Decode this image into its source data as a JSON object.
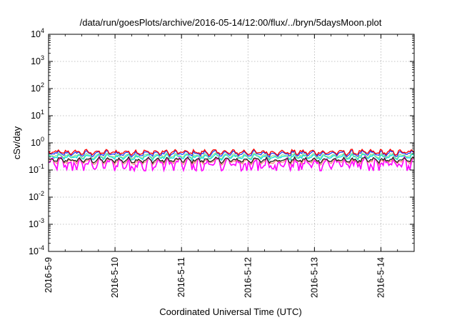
{
  "chart_data": {
    "type": "line",
    "title": "/data/run/goesPlots/archive/2016-05-14/12:00/flux/../bryn/5daysMoon.plot",
    "xlabel": "Coordinated Universal Time (UTC)",
    "ylabel": "cSv/day",
    "y_scale": "log",
    "ylim": [
      0.0001,
      10000
    ],
    "y_ticks": [
      {
        "base": "10",
        "exp": "-4",
        "value": 0.0001
      },
      {
        "base": "10",
        "exp": "-3",
        "value": 0.001
      },
      {
        "base": "10",
        "exp": "-2",
        "value": 0.01
      },
      {
        "base": "10",
        "exp": "-1",
        "value": 0.1
      },
      {
        "base": "10",
        "exp": "0",
        "value": 1
      },
      {
        "base": "10",
        "exp": "1",
        "value": 10
      },
      {
        "base": "10",
        "exp": "2",
        "value": 100
      },
      {
        "base": "10",
        "exp": "3",
        "value": 1000
      },
      {
        "base": "10",
        "exp": "4",
        "value": 10000
      }
    ],
    "xlim": [
      "2016-05-09",
      "2016-05-14 12:00"
    ],
    "x_ticks": [
      "2016-5-9",
      "2016-5-10",
      "2016-5-11",
      "2016-5-12",
      "2016-5-13",
      "2016-5-14"
    ],
    "grid": true,
    "series": [
      {
        "color": "#ff00ff",
        "base_value": 0.17,
        "spread": 0.3
      },
      {
        "color": "#ff8080",
        "base_value": 0.21,
        "spread": 0.15
      },
      {
        "color": "#202020",
        "base_value": 0.23,
        "spread": 0.12
      },
      {
        "color": "#00e0e0",
        "base_value": 0.3,
        "spread": 0.12
      },
      {
        "color": "#90e090",
        "base_value": 0.33,
        "spread": 0.12
      },
      {
        "color": "#2040ff",
        "base_value": 0.4,
        "spread": 0.13
      },
      {
        "color": "#ff0000",
        "base_value": 0.45,
        "spread": 0.12
      }
    ]
  }
}
